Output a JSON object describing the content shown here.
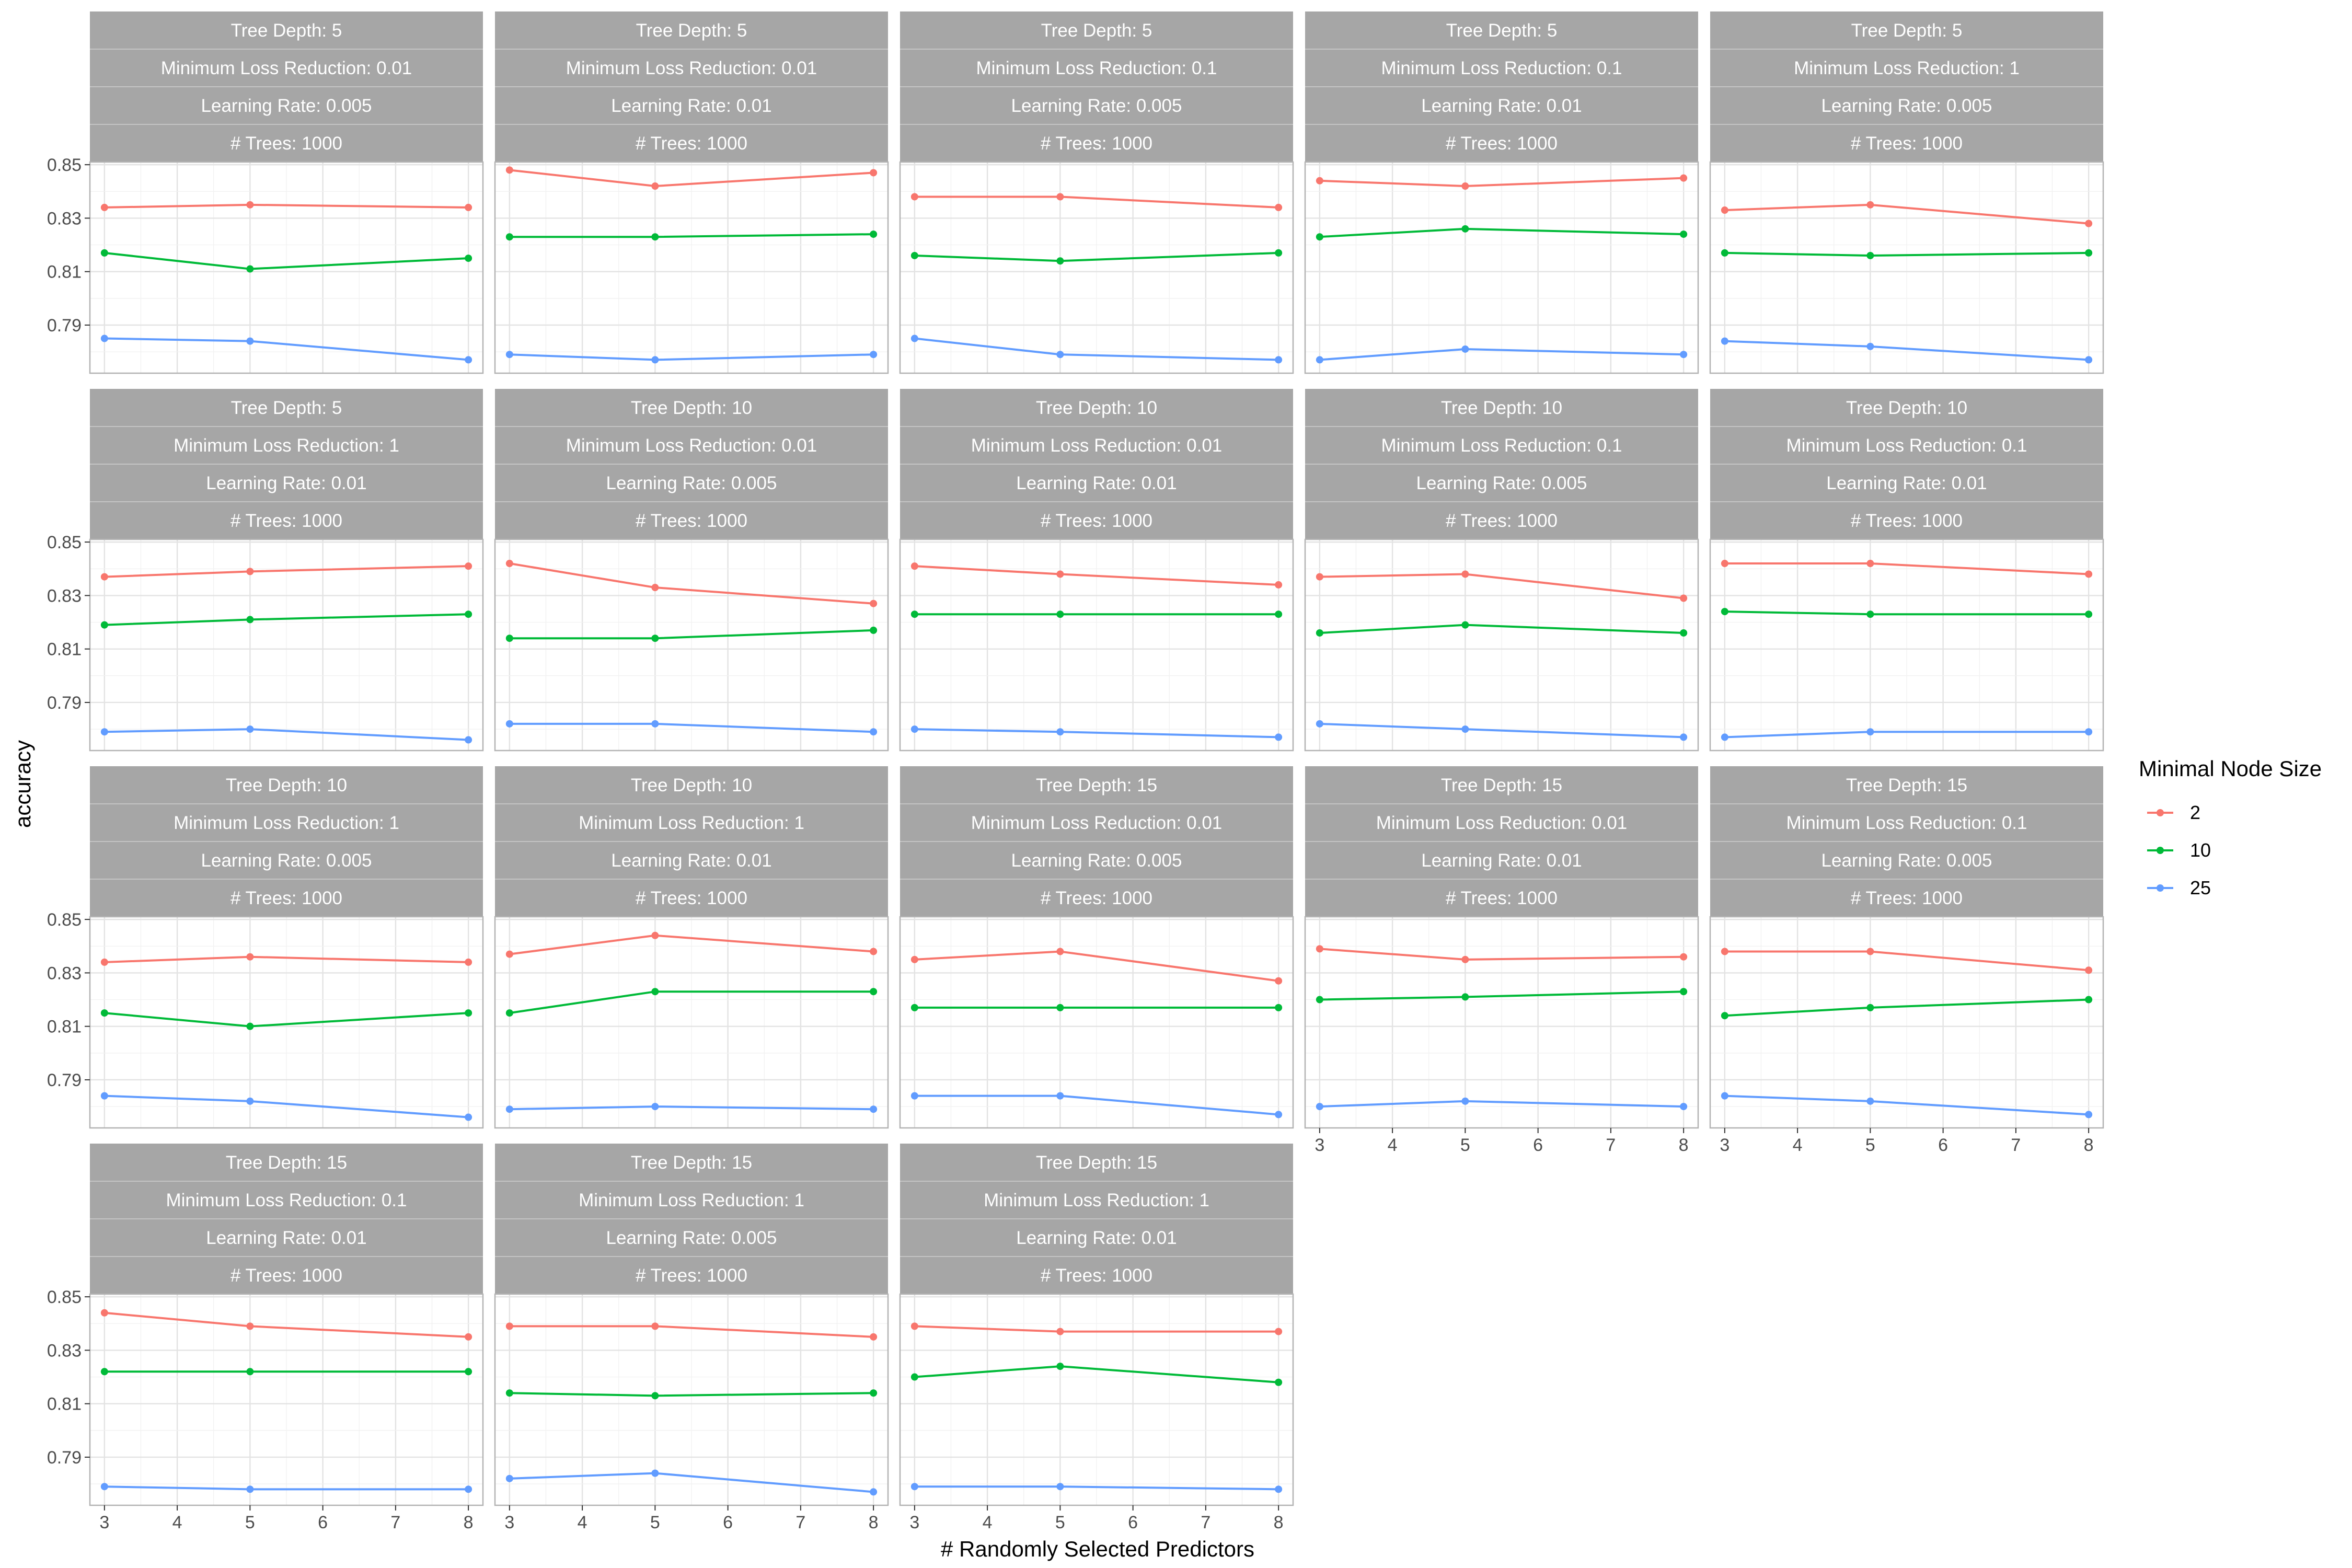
{
  "chart_data": {
    "type": "line",
    "ylabel": "accuracy",
    "xlabel": "# Randomly Selected Predictors",
    "x": [
      3,
      5,
      8
    ],
    "x_ticks": [
      3,
      4,
      5,
      6,
      7,
      8
    ],
    "y_ticks": [
      0.79,
      0.81,
      0.83,
      0.85
    ],
    "y_tick_labels": [
      "0.79",
      "0.81",
      "0.83",
      "0.85"
    ],
    "x_tick_labels": [
      "3",
      "4",
      "5",
      "6",
      "7",
      "8"
    ],
    "xlim": [
      2.8,
      8.2
    ],
    "ylim": [
      0.772,
      0.851
    ],
    "grid": true,
    "legend": {
      "title": "Minimal Node Size",
      "position": "right",
      "entries": [
        {
          "label": "2",
          "color": "#F8766D"
        },
        {
          "label": "10",
          "color": "#00BA38"
        },
        {
          "label": "25",
          "color": "#619CFF"
        }
      ]
    },
    "strip_color": "#A6A6A6",
    "panels": [
      {
        "strips": [
          "Tree Depth: 5",
          "Minimum Loss Reduction: 0.01",
          "Learning Rate: 0.005",
          "# Trees: 1000"
        ],
        "series": [
          {
            "values": [
              0.834,
              0.835,
              0.834
            ]
          },
          {
            "values": [
              0.817,
              0.811,
              0.815
            ]
          },
          {
            "values": [
              0.785,
              0.784,
              0.777
            ]
          }
        ]
      },
      {
        "strips": [
          "Tree Depth: 5",
          "Minimum Loss Reduction: 0.01",
          "Learning Rate: 0.01",
          "# Trees: 1000"
        ],
        "series": [
          {
            "values": [
              0.848,
              0.842,
              0.847
            ]
          },
          {
            "values": [
              0.823,
              0.823,
              0.824
            ]
          },
          {
            "values": [
              0.779,
              0.777,
              0.779
            ]
          }
        ]
      },
      {
        "strips": [
          "Tree Depth: 5",
          "Minimum Loss Reduction: 0.1",
          "Learning Rate: 0.005",
          "# Trees: 1000"
        ],
        "series": [
          {
            "values": [
              0.838,
              0.838,
              0.834
            ]
          },
          {
            "values": [
              0.816,
              0.814,
              0.817
            ]
          },
          {
            "values": [
              0.785,
              0.779,
              0.777
            ]
          }
        ]
      },
      {
        "strips": [
          "Tree Depth: 5",
          "Minimum Loss Reduction: 0.1",
          "Learning Rate: 0.01",
          "# Trees: 1000"
        ],
        "series": [
          {
            "values": [
              0.844,
              0.842,
              0.845
            ]
          },
          {
            "values": [
              0.823,
              0.826,
              0.824
            ]
          },
          {
            "values": [
              0.777,
              0.781,
              0.779
            ]
          }
        ]
      },
      {
        "strips": [
          "Tree Depth: 5",
          "Minimum Loss Reduction: 1",
          "Learning Rate: 0.005",
          "# Trees: 1000"
        ],
        "series": [
          {
            "values": [
              0.833,
              0.835,
              0.828
            ]
          },
          {
            "values": [
              0.817,
              0.816,
              0.817
            ]
          },
          {
            "values": [
              0.784,
              0.782,
              0.777
            ]
          }
        ]
      },
      {
        "strips": [
          "Tree Depth: 5",
          "Minimum Loss Reduction: 1",
          "Learning Rate: 0.01",
          "# Trees: 1000"
        ],
        "series": [
          {
            "values": [
              0.837,
              0.839,
              0.841
            ]
          },
          {
            "values": [
              0.819,
              0.821,
              0.823
            ]
          },
          {
            "values": [
              0.779,
              0.78,
              0.776
            ]
          }
        ]
      },
      {
        "strips": [
          "Tree Depth: 10",
          "Minimum Loss Reduction: 0.01",
          "Learning Rate: 0.005",
          "# Trees: 1000"
        ],
        "series": [
          {
            "values": [
              0.842,
              0.833,
              0.827
            ]
          },
          {
            "values": [
              0.814,
              0.814,
              0.817
            ]
          },
          {
            "values": [
              0.782,
              0.782,
              0.779
            ]
          }
        ]
      },
      {
        "strips": [
          "Tree Depth: 10",
          "Minimum Loss Reduction: 0.01",
          "Learning Rate: 0.01",
          "# Trees: 1000"
        ],
        "series": [
          {
            "values": [
              0.841,
              0.838,
              0.834
            ]
          },
          {
            "values": [
              0.823,
              0.823,
              0.823
            ]
          },
          {
            "values": [
              0.78,
              0.779,
              0.777
            ]
          }
        ]
      },
      {
        "strips": [
          "Tree Depth: 10",
          "Minimum Loss Reduction: 0.1",
          "Learning Rate: 0.005",
          "# Trees: 1000"
        ],
        "series": [
          {
            "values": [
              0.837,
              0.838,
              0.829
            ]
          },
          {
            "values": [
              0.816,
              0.819,
              0.816
            ]
          },
          {
            "values": [
              0.782,
              0.78,
              0.777
            ]
          }
        ]
      },
      {
        "strips": [
          "Tree Depth: 10",
          "Minimum Loss Reduction: 0.1",
          "Learning Rate: 0.01",
          "# Trees: 1000"
        ],
        "series": [
          {
            "values": [
              0.842,
              0.842,
              0.838
            ]
          },
          {
            "values": [
              0.824,
              0.823,
              0.823
            ]
          },
          {
            "values": [
              0.777,
              0.779,
              0.779
            ]
          }
        ]
      },
      {
        "strips": [
          "Tree Depth: 10",
          "Minimum Loss Reduction: 1",
          "Learning Rate: 0.005",
          "# Trees: 1000"
        ],
        "series": [
          {
            "values": [
              0.834,
              0.836,
              0.834
            ]
          },
          {
            "values": [
              0.815,
              0.81,
              0.815
            ]
          },
          {
            "values": [
              0.784,
              0.782,
              0.776
            ]
          }
        ]
      },
      {
        "strips": [
          "Tree Depth: 10",
          "Minimum Loss Reduction: 1",
          "Learning Rate: 0.01",
          "# Trees: 1000"
        ],
        "series": [
          {
            "values": [
              0.837,
              0.844,
              0.838
            ]
          },
          {
            "values": [
              0.815,
              0.823,
              0.823
            ]
          },
          {
            "values": [
              0.779,
              0.78,
              0.779
            ]
          }
        ]
      },
      {
        "strips": [
          "Tree Depth: 15",
          "Minimum Loss Reduction: 0.01",
          "Learning Rate: 0.005",
          "# Trees: 1000"
        ],
        "series": [
          {
            "values": [
              0.835,
              0.838,
              0.827
            ]
          },
          {
            "values": [
              0.817,
              0.817,
              0.817
            ]
          },
          {
            "values": [
              0.784,
              0.784,
              0.777
            ]
          }
        ]
      },
      {
        "strips": [
          "Tree Depth: 15",
          "Minimum Loss Reduction: 0.01",
          "Learning Rate: 0.01",
          "# Trees: 1000"
        ],
        "series": [
          {
            "values": [
              0.839,
              0.835,
              0.836
            ]
          },
          {
            "values": [
              0.82,
              0.821,
              0.823
            ]
          },
          {
            "values": [
              0.78,
              0.782,
              0.78
            ]
          }
        ]
      },
      {
        "strips": [
          "Tree Depth: 15",
          "Minimum Loss Reduction: 0.1",
          "Learning Rate: 0.005",
          "# Trees: 1000"
        ],
        "series": [
          {
            "values": [
              0.838,
              0.838,
              0.831
            ]
          },
          {
            "values": [
              0.814,
              0.817,
              0.82
            ]
          },
          {
            "values": [
              0.784,
              0.782,
              0.777
            ]
          }
        ]
      },
      {
        "strips": [
          "Tree Depth: 15",
          "Minimum Loss Reduction: 0.1",
          "Learning Rate: 0.01",
          "# Trees: 1000"
        ],
        "series": [
          {
            "values": [
              0.844,
              0.839,
              0.835
            ]
          },
          {
            "values": [
              0.822,
              0.822,
              0.822
            ]
          },
          {
            "values": [
              0.779,
              0.778,
              0.778
            ]
          }
        ]
      },
      {
        "strips": [
          "Tree Depth: 15",
          "Minimum Loss Reduction: 1",
          "Learning Rate: 0.005",
          "# Trees: 1000"
        ],
        "series": [
          {
            "values": [
              0.839,
              0.839,
              0.835
            ]
          },
          {
            "values": [
              0.814,
              0.813,
              0.814
            ]
          },
          {
            "values": [
              0.782,
              0.784,
              0.777
            ]
          }
        ]
      },
      {
        "strips": [
          "Tree Depth: 15",
          "Minimum Loss Reduction: 1",
          "Learning Rate: 0.01",
          "# Trees: 1000"
        ],
        "series": [
          {
            "values": [
              0.839,
              0.837,
              0.837
            ]
          },
          {
            "values": [
              0.82,
              0.824,
              0.818
            ]
          },
          {
            "values": [
              0.779,
              0.779,
              0.778
            ]
          }
        ]
      }
    ]
  }
}
